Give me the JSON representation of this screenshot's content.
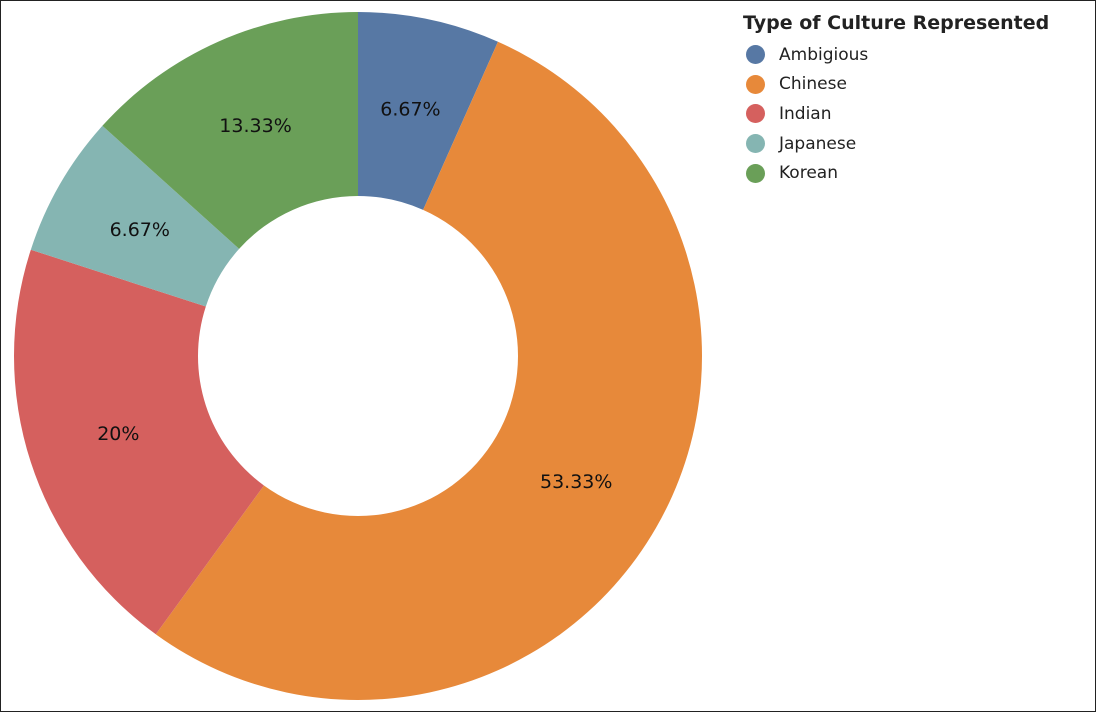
{
  "chart_data": {
    "type": "pie",
    "variant": "donut",
    "title": "",
    "legend_title": "Type of Culture Represented",
    "legend_position": "top-right",
    "slices": [
      {
        "name": "Ambigious",
        "value": 6.67,
        "label": "6.67%",
        "color": "#5778a4"
      },
      {
        "name": "Chinese",
        "value": 53.33,
        "label": "53.33%",
        "color": "#e7893a"
      },
      {
        "name": "Indian",
        "value": 20,
        "label": "20%",
        "color": "#d5605e"
      },
      {
        "name": "Japanese",
        "value": 6.67,
        "label": "6.67%",
        "color": "#85b5b2"
      },
      {
        "name": "Korean",
        "value": 13.33,
        "label": "13.33%",
        "color": "#6a9f58"
      }
    ]
  }
}
